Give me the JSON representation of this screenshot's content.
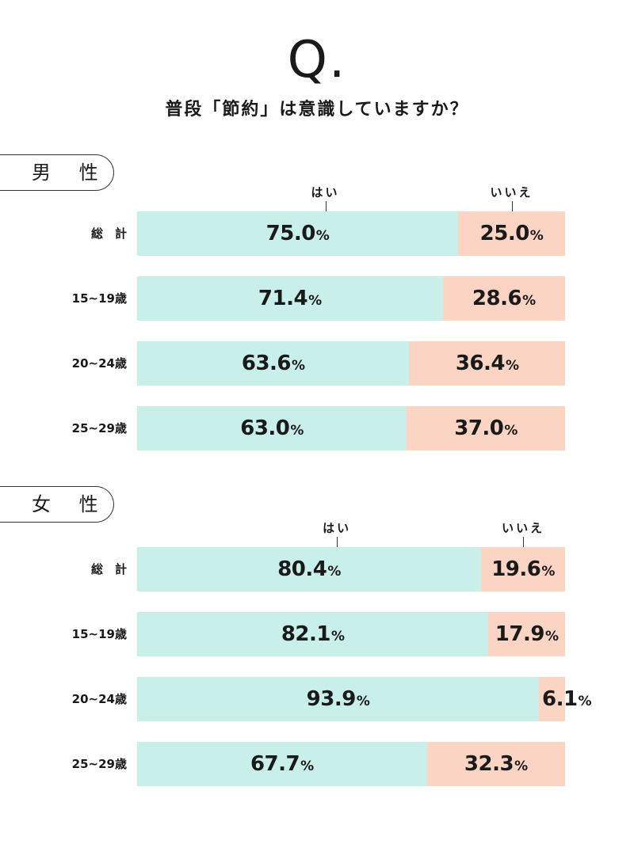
{
  "header": {
    "q_mark": "Q.",
    "question": "普段「節約」は意識していますか？"
  },
  "legend": {
    "yes": "はい",
    "no": "いいえ"
  },
  "unit": "%",
  "colors": {
    "yes": "#c9efea",
    "no": "#fbd4c3"
  },
  "chart_data": [
    {
      "type": "bar",
      "orientation": "horizontal-stacked",
      "section": "男 性",
      "categories": [
        "総　計",
        "15~19歳",
        "20~24歳",
        "25~29歳"
      ],
      "series": [
        {
          "name": "はい",
          "values": [
            75.0,
            71.4,
            63.6,
            63.0
          ]
        },
        {
          "name": "いいえ",
          "values": [
            25.0,
            28.6,
            36.4,
            37.0
          ]
        }
      ],
      "xlim": [
        0,
        100
      ]
    },
    {
      "type": "bar",
      "orientation": "horizontal-stacked",
      "section": "女 性",
      "categories": [
        "総　計",
        "15~19歳",
        "20~24歳",
        "25~29歳"
      ],
      "series": [
        {
          "name": "はい",
          "values": [
            80.4,
            82.1,
            93.9,
            67.7
          ]
        },
        {
          "name": "いいえ",
          "values": [
            19.6,
            17.9,
            6.1,
            32.3
          ]
        }
      ],
      "xlim": [
        0,
        100
      ]
    }
  ]
}
